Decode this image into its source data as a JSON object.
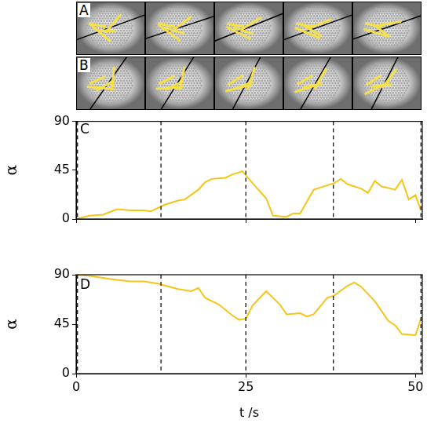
{
  "panels": [
    {
      "label": "A"
    },
    {
      "label": "B"
    }
  ],
  "chart_data": [
    {
      "type": "line",
      "title": "C",
      "y_label": "α",
      "color": "#f5c518",
      "grid": false,
      "tick_labels": "y",
      "xlim": [
        0,
        51
      ],
      "xticks": [
        0,
        25,
        50
      ],
      "ylim": [
        0,
        90
      ],
      "yticks": [
        0,
        45,
        90
      ],
      "vlines": [
        0.2,
        12.5,
        25,
        37.9,
        50.8
      ],
      "x": [
        0,
        2,
        4,
        6,
        8,
        10,
        11,
        12,
        13,
        15,
        16,
        18,
        19,
        20,
        22,
        23,
        24.5,
        26,
        28,
        29,
        31,
        32,
        33,
        35,
        36,
        38,
        39,
        40,
        42,
        43,
        44,
        45,
        47,
        48,
        49,
        50,
        50.8
      ],
      "values": [
        0,
        3,
        4,
        9,
        8,
        8,
        7,
        10,
        13,
        17,
        18,
        27,
        34,
        37,
        38,
        41,
        44,
        33,
        19,
        3,
        2,
        5,
        5,
        27,
        29,
        33,
        37,
        32,
        28,
        24,
        35,
        30,
        27,
        36,
        18,
        22,
        8
      ]
    },
    {
      "type": "line",
      "title": "D",
      "x_label": "t /s",
      "y_label": "α",
      "color": "#f5c518",
      "grid": false,
      "xlim": [
        0,
        51
      ],
      "xticks": [
        0,
        25,
        50
      ],
      "ylim": [
        0,
        90
      ],
      "yticks": [
        0,
        45,
        90
      ],
      "vlines": [
        0.2,
        12.5,
        25,
        37.9,
        50.8
      ],
      "x": [
        0,
        2,
        5,
        8,
        10,
        12,
        15,
        17,
        18,
        19,
        21,
        23,
        24,
        25,
        26,
        28,
        30,
        31,
        33,
        34,
        35,
        37,
        38,
        40,
        41,
        42,
        44,
        46,
        47,
        48,
        50,
        50.8
      ],
      "values": [
        90,
        89,
        86,
        84,
        84,
        82,
        77,
        75,
        78,
        69,
        63,
        53,
        49,
        50,
        62,
        75,
        63,
        54,
        55,
        52,
        54,
        69,
        71,
        80,
        83,
        79,
        66,
        48,
        44,
        36,
        35,
        50
      ]
    }
  ]
}
